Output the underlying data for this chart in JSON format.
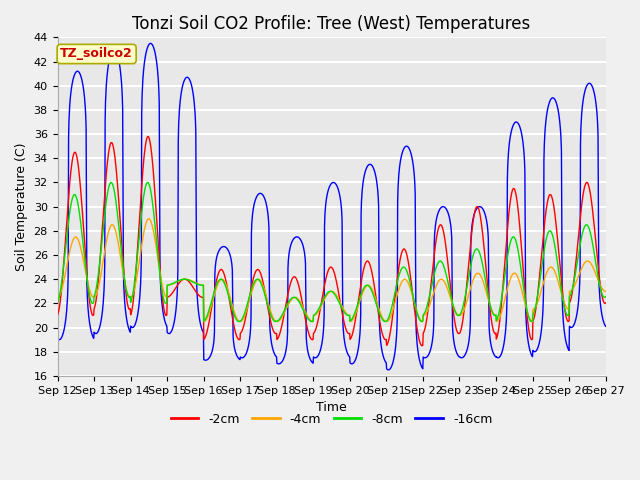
{
  "title": "Tonzi Soil CO2 Profile: Tree (West) Temperatures",
  "xlabel": "Time",
  "ylabel": "Soil Temperature (C)",
  "ylim": [
    16,
    44
  ],
  "yticks": [
    16,
    18,
    20,
    22,
    24,
    26,
    28,
    30,
    32,
    34,
    36,
    38,
    40,
    42,
    44
  ],
  "colors": {
    "-2cm": "#ff0000",
    "-4cm": "#ffa500",
    "-8cm": "#00dd00",
    "-16cm": "#0000ff"
  },
  "legend_labels": [
    "-2cm",
    "-4cm",
    "-8cm",
    "-16cm"
  ],
  "annotation_text": "TZ_soilco2",
  "annotation_box_color": "#ffffcc",
  "annotation_text_color": "#cc0000",
  "annotation_edge_color": "#aaaa00",
  "plot_bg_color": "#e8e8e8",
  "fig_bg_color": "#f0f0f0",
  "grid_color": "#ffffff",
  "xtick_labels": [
    "Sep 12",
    "Sep 13",
    "Sep 14",
    "Sep 15",
    "Sep 16",
    "Sep 17",
    "Sep 18",
    "Sep 19",
    "Sep 20",
    "Sep 21",
    "Sep 22",
    "Sep 23",
    "Sep 24",
    "Sep 25",
    "Sep 26",
    "Sep 27"
  ],
  "n_days": 15,
  "ppd": 96,
  "base_temp": 19.5,
  "title_fontsize": 12,
  "axis_label_fontsize": 9,
  "tick_fontsize": 8,
  "legend_fontsize": 9,
  "linewidth": 1.0,
  "day_peaks_blue": [
    41.2,
    43.0,
    43.5,
    40.7,
    26.7,
    31.1,
    27.5,
    32.0,
    33.5,
    35.0,
    30.0,
    30.0,
    37.0,
    39.0,
    40.2
  ],
  "day_peaks_red": [
    34.5,
    35.3,
    35.8,
    24.0,
    24.8,
    24.8,
    24.2,
    25.0,
    25.5,
    26.5,
    28.5,
    30.0,
    31.5,
    31.0,
    32.0
  ],
  "day_peaks_orange": [
    27.5,
    28.5,
    29.0,
    24.0,
    24.0,
    24.0,
    22.5,
    23.0,
    23.5,
    24.0,
    24.0,
    24.5,
    24.5,
    25.0,
    25.5
  ],
  "day_peaks_green": [
    31.0,
    32.0,
    32.0,
    24.0,
    24.0,
    24.0,
    22.5,
    23.0,
    23.5,
    25.0,
    25.5,
    26.5,
    27.5,
    28.0,
    28.5
  ],
  "day_mins_blue": [
    19.0,
    19.5,
    20.0,
    19.5,
    17.3,
    17.5,
    17.0,
    17.5,
    17.0,
    16.5,
    17.5,
    17.5,
    17.5,
    18.0,
    20.0
  ],
  "day_mins_red": [
    21.0,
    21.5,
    21.0,
    22.5,
    19.0,
    19.5,
    19.0,
    19.5,
    19.0,
    18.5,
    19.5,
    19.5,
    19.0,
    20.5,
    22.0
  ],
  "day_mins_orange": [
    22.5,
    22.5,
    22.5,
    23.5,
    20.5,
    20.5,
    20.5,
    21.0,
    20.5,
    20.5,
    21.0,
    21.0,
    20.5,
    21.5,
    23.0
  ],
  "day_mins_green": [
    22.0,
    22.5,
    22.0,
    23.5,
    20.5,
    20.5,
    20.5,
    21.0,
    20.5,
    20.5,
    21.0,
    21.0,
    20.5,
    21.0,
    22.5
  ]
}
